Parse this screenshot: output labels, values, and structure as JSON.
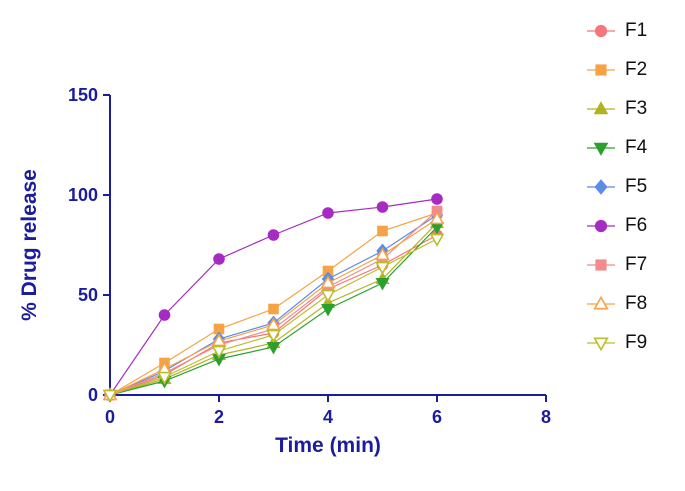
{
  "figure": {
    "background": "#ffffff"
  },
  "chart_data": {
    "type": "line",
    "title": "",
    "xlabel": "Time (min)",
    "ylabel": "% Drug release",
    "xlim": [
      0,
      8
    ],
    "ylim": [
      0,
      150
    ],
    "xticks": [
      0,
      2,
      4,
      6,
      8
    ],
    "yticks": [
      0,
      50,
      100,
      150
    ],
    "grid": false,
    "axis_color": "#1c1c9e",
    "legend_position": "right",
    "x": [
      0,
      1,
      2,
      3,
      4,
      5,
      6
    ],
    "series": [
      {
        "name": "F1",
        "marker": "circle",
        "fill": "solid",
        "color": "#f5767b",
        "values": [
          0,
          10,
          26,
          31,
          53,
          65,
          80
        ]
      },
      {
        "name": "F2",
        "marker": "square",
        "fill": "solid",
        "color": "#f5a345",
        "values": [
          0,
          16,
          33,
          43,
          62,
          82,
          91
        ]
      },
      {
        "name": "F3",
        "marker": "triangle-up",
        "fill": "solid",
        "color": "#b2b221",
        "values": [
          0,
          8,
          20,
          26,
          46,
          58,
          86
        ]
      },
      {
        "name": "F4",
        "marker": "triangle-down",
        "fill": "solid",
        "color": "#2ca02c",
        "values": [
          0,
          7,
          18,
          24,
          43,
          56,
          84
        ]
      },
      {
        "name": "F5",
        "marker": "diamond",
        "fill": "solid",
        "color": "#5b8cea",
        "values": [
          0,
          12,
          28,
          36,
          58,
          72,
          90
        ]
      },
      {
        "name": "F6",
        "marker": "circle",
        "fill": "solid",
        "color": "#a62bc3",
        "values": [
          0,
          40,
          68,
          80,
          91,
          94,
          98
        ]
      },
      {
        "name": "F7",
        "marker": "square",
        "fill": "solid",
        "color": "#f28b8b",
        "values": [
          0,
          11,
          25,
          33,
          54,
          68,
          92
        ]
      },
      {
        "name": "F8",
        "marker": "triangle-up",
        "fill": "open",
        "color": "#f5a345",
        "values": [
          0,
          13,
          27,
          35,
          56,
          70,
          88
        ]
      },
      {
        "name": "F9",
        "marker": "triangle-down",
        "fill": "open",
        "color": "#bdbd2b",
        "values": [
          0,
          9,
          22,
          30,
          50,
          64,
          78
        ]
      }
    ]
  }
}
